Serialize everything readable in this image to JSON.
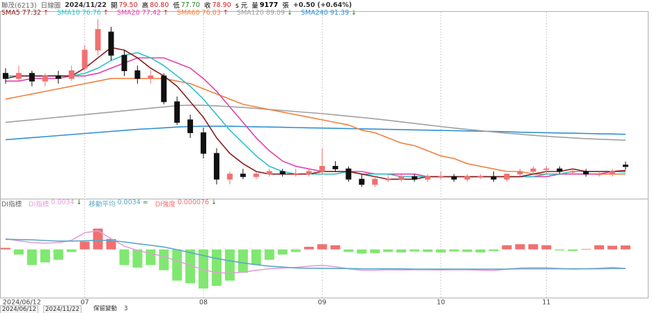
{
  "header": {
    "name": "聯茂(6213)",
    "period": "日線圖",
    "date": "2024/11/22",
    "open_label": "開",
    "open": "79.50",
    "high_label": "高",
    "high": "80.80",
    "low_label": "低",
    "low": "77.70",
    "close_label": "收",
    "close": "78.90",
    "unit": "s 元",
    "volume_label": "量",
    "volume": "9177",
    "volume_unit": "張",
    "change": "+0.50 (+0.64%)"
  },
  "controls": {
    "start": "2024/06/12",
    "end": "2024/11/22",
    "keep_label": "保留變動",
    "keep_value": "3"
  },
  "chart_data": {
    "type": "candlestick",
    "ylim": [
      67,
      138
    ],
    "up_color": "#f07070",
    "down_color": "#111111",
    "categories": [
      "2024/06/12",
      null,
      null,
      null,
      null,
      null,
      "07",
      null,
      null,
      null,
      null,
      null,
      null,
      null,
      null,
      "08",
      null,
      null,
      null,
      null,
      null,
      null,
      null,
      null,
      "09",
      null,
      null,
      null,
      null,
      null,
      null,
      null,
      null,
      "10",
      null,
      null,
      null,
      null,
      null,
      null,
      null,
      "11",
      null,
      null,
      null,
      null,
      null,
      null
    ],
    "open": [
      115,
      113,
      115,
      112,
      114,
      113,
      117,
      124,
      131,
      122,
      116,
      113,
      114,
      104,
      97,
      92,
      84,
      74,
      76,
      75,
      76,
      77,
      76,
      76,
      77,
      79,
      78,
      74,
      72,
      74,
      74,
      75,
      74,
      75,
      75,
      74,
      75,
      75,
      74,
      76,
      77,
      78,
      78,
      77,
      77,
      76,
      76,
      79.5
    ],
    "high": [
      117,
      118,
      116,
      115,
      116,
      118,
      126,
      136,
      133,
      124,
      118,
      116,
      115,
      106,
      99,
      94,
      86,
      77,
      78,
      77,
      78,
      78,
      78,
      78,
      86,
      81,
      79,
      76,
      75,
      76,
      76,
      76,
      76,
      77,
      76,
      76,
      76,
      77,
      76,
      78,
      79,
      79,
      79,
      78,
      78,
      77,
      78,
      80.8
    ],
    "low": [
      111,
      112,
      110,
      110,
      111,
      112,
      116,
      122,
      120,
      114,
      111,
      111,
      103,
      95,
      90,
      82,
      72,
      72,
      74,
      74,
      75,
      75,
      75,
      75,
      76,
      77,
      73,
      71,
      71,
      73,
      73,
      73,
      73,
      74,
      73,
      73,
      74,
      73,
      73,
      75,
      76,
      76,
      76,
      76,
      75,
      75,
      75,
      77.7
    ],
    "close": [
      113,
      115,
      112,
      114,
      113,
      116,
      124,
      132,
      122,
      116,
      113,
      114,
      104,
      96,
      92,
      84,
      74,
      76,
      75,
      76,
      77,
      76,
      76,
      77,
      79,
      78,
      74,
      72,
      74,
      74,
      75,
      74,
      75,
      75,
      74,
      75,
      75,
      74,
      76,
      77,
      78,
      78,
      77,
      77,
      76,
      76,
      77,
      78.9
    ],
    "series": [
      {
        "name": "SMA5",
        "color": "#8b1c1c",
        "trend": "↑",
        "values": [
          113,
          114,
          114,
          114,
          114,
          114,
          117,
          121,
          125,
          124,
          121,
          117,
          114,
          110,
          104,
          98,
          90,
          84,
          80,
          77,
          76,
          76,
          76,
          76,
          77,
          77,
          77,
          76,
          75,
          74,
          74,
          74,
          75,
          75,
          75,
          75,
          75,
          75,
          75,
          75,
          76,
          77,
          77,
          78,
          77,
          77,
          77,
          77.32
        ]
      },
      {
        "name": "SMA10",
        "color": "#30c0c8",
        "trend": "↑",
        "values": [
          114,
          114,
          114,
          114,
          114,
          114,
          115,
          117,
          120,
          122,
          123,
          121,
          118,
          114,
          110,
          105,
          99,
          93,
          88,
          83,
          79,
          77,
          76,
          76,
          76,
          76,
          77,
          76,
          76,
          76,
          75,
          75,
          75,
          75,
          75,
          75,
          75,
          75,
          75,
          75,
          75,
          76,
          76,
          77,
          77,
          77,
          77,
          76.76
        ]
      },
      {
        "name": "SMA20",
        "color": "#e040a8",
        "trend": "↑",
        "values": [
          112,
          112,
          113,
          113,
          113,
          114,
          114,
          115,
          117,
          119,
          121,
          121,
          121,
          119,
          117,
          113,
          108,
          102,
          96,
          90,
          85,
          81,
          79,
          78,
          77,
          77,
          77,
          77,
          76,
          76,
          76,
          76,
          75,
          75,
          75,
          75,
          75,
          75,
          75,
          75,
          75,
          75,
          76,
          76,
          76,
          76,
          77,
          77.42
        ]
      },
      {
        "name": "SMA60",
        "color": "#f08040",
        "trend": "↑",
        "values": [
          105,
          106,
          107,
          108,
          109,
          110,
          111,
          112,
          113,
          113,
          113,
          113,
          113,
          112,
          111,
          109,
          107,
          105,
          103,
          102,
          101,
          100,
          99,
          98,
          97,
          96,
          95,
          93,
          92,
          90,
          88,
          87,
          85,
          83,
          82,
          80,
          79,
          78,
          77,
          77,
          76,
          76,
          76,
          76,
          76,
          76,
          76,
          76.03
        ]
      },
      {
        "name": "SMA120",
        "color": "#a0a0a0",
        "trend": "↓",
        "values": [
          96,
          96.5,
          97,
          97.5,
          98,
          98.5,
          99,
          99.5,
          100,
          100.5,
          101,
          101.5,
          102,
          102.5,
          102.7,
          102.6,
          102.4,
          102.1,
          101.8,
          101.4,
          101,
          100.6,
          100.2,
          99.8,
          99.4,
          98.9,
          98.4,
          97.9,
          97.4,
          96.8,
          96.2,
          95.6,
          95,
          94.4,
          93.8,
          93.3,
          92.8,
          92.3,
          91.8,
          91.4,
          91,
          90.6,
          90.3,
          90,
          89.7,
          89.5,
          89.3,
          89.09
        ]
      },
      {
        "name": "SMA240",
        "color": "#3090d0",
        "trend": "↓",
        "values": [
          89.3,
          89.7,
          90.1,
          90.5,
          90.9,
          91.3,
          91.7,
          92.1,
          92.5,
          92.9,
          93.3,
          93.6,
          93.9,
          94.2,
          94.4,
          94.5,
          94.5,
          94.5,
          94.4,
          94.3,
          94.2,
          94.1,
          94,
          93.9,
          93.8,
          93.7,
          93.6,
          93.5,
          93.4,
          93.3,
          93.2,
          93.1,
          93,
          92.9,
          92.8,
          92.7,
          92.6,
          92.5,
          92.4,
          92.2,
          92.1,
          92,
          91.9,
          91.8,
          91.7,
          91.6,
          91.5,
          91.39
        ]
      }
    ],
    "indicator": {
      "title": "DI指標",
      "line_ylim": [
        -0.006,
        0.024
      ],
      "hist_ylim": [
        -0.0009,
        0.0008
      ],
      "series": [
        {
          "name": "DI指標",
          "color": "#e0a0d8",
          "trend": "↓",
          "values": [
            0.0135,
            0.0128,
            0.0122,
            0.012,
            0.0122,
            0.013,
            0.0155,
            0.0162,
            0.0135,
            0.011,
            0.0095,
            0.0085,
            0.0075,
            0.006,
            0.0045,
            0.003,
            0.002,
            0.0018,
            0.0022,
            0.0028,
            0.0033,
            0.0036,
            0.0038,
            0.0042,
            0.0045,
            0.004,
            0.0033,
            0.0028,
            0.0028,
            0.003,
            0.0029,
            0.003,
            0.003,
            0.0029,
            0.003,
            0.003,
            0.0028,
            0.0027,
            0.0032,
            0.0036,
            0.0037,
            0.0037,
            0.0034,
            0.0032,
            0.0033,
            0.0035,
            0.0038,
            0.0034
          ]
        },
        {
          "name": "移動平均",
          "color": "#5aa8c8",
          "trend": "=",
          "values": [
            0.0133,
            0.0132,
            0.0131,
            0.0129,
            0.0127,
            0.0127,
            0.0128,
            0.013,
            0.0129,
            0.0124,
            0.0118,
            0.0113,
            0.0107,
            0.0098,
            0.0088,
            0.0078,
            0.0068,
            0.006,
            0.0053,
            0.0047,
            0.0042,
            0.0039,
            0.0036,
            0.0035,
            0.0035,
            0.0034,
            0.0034,
            0.0033,
            0.0033,
            0.0033,
            0.0033,
            0.0032,
            0.0032,
            0.0032,
            0.0032,
            0.0032,
            0.0032,
            0.0032,
            0.0032,
            0.0033,
            0.0033,
            0.0033,
            0.0033,
            0.0033,
            0.0033,
            0.0033,
            0.0034,
            0.0034
          ]
        }
      ],
      "histogram": {
        "name": "DI強度",
        "trend": "↓",
        "up_color": "#f07070",
        "down_color": "#80e870",
        "values": [
          3e-05,
          -0.0001,
          -0.0003,
          -0.00025,
          -0.0002,
          -5e-05,
          0.00015,
          0.0004,
          0.0002,
          -0.0003,
          -0.00035,
          -0.0003,
          -0.0004,
          -0.0006,
          -0.00065,
          -0.00075,
          -0.0007,
          -0.0006,
          -0.00045,
          -0.0003,
          -0.0002,
          -0.0001,
          -5e-05,
          5e-05,
          0.0001,
          8e-05,
          -5e-05,
          -8e-05,
          -7e-05,
          -5e-05,
          -6e-05,
          -4e-05,
          -5e-05,
          -6e-05,
          -4e-05,
          -5e-05,
          -6e-05,
          -3e-05,
          8e-05,
          0.0001,
          0.0001,
          8e-05,
          -2e-05,
          -3e-05,
          1e-05,
          8e-05,
          7e-05,
          7.6e-05
        ]
      }
    }
  }
}
